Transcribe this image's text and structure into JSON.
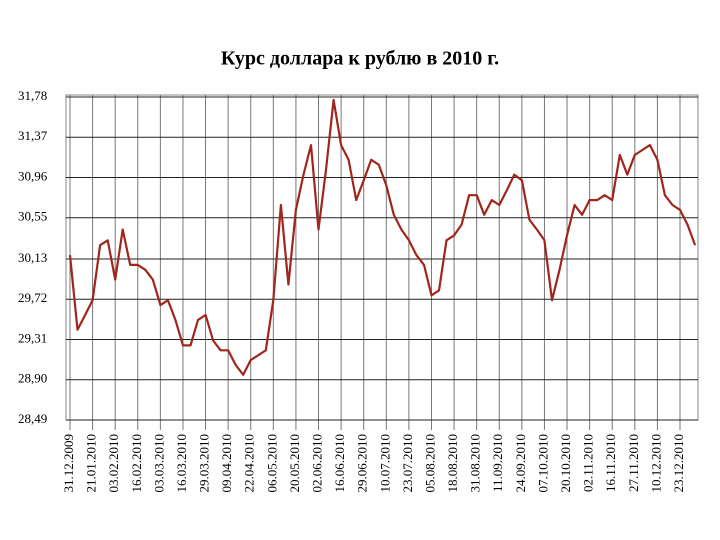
{
  "chart_data": {
    "type": "line",
    "title": "Курс доллара к рублю в 2010 г.",
    "categories": [
      "31.12.2009",
      null,
      null,
      "21.01.2010",
      null,
      null,
      "03.02.2010",
      null,
      null,
      "16.02.2010",
      null,
      null,
      "03.03.2010",
      null,
      null,
      "16.03.2010",
      null,
      null,
      "29.03.2010",
      null,
      null,
      "09.04.2010",
      null,
      null,
      "22.04.2010",
      null,
      null,
      "06.05.2010",
      null,
      null,
      "20.05.2010",
      null,
      null,
      "02.06.2010",
      null,
      null,
      "16.06.2010",
      null,
      null,
      "29.06.2010",
      null,
      null,
      "10.07.2010",
      null,
      null,
      "23.07.2010",
      null,
      null,
      "05.08.2010",
      null,
      null,
      "18.08.2010",
      null,
      null,
      "31.08.2010",
      null,
      null,
      "11.09.2010",
      null,
      null,
      "24.09.2010",
      null,
      null,
      "07.10.2010",
      null,
      null,
      "20.10.2010",
      null,
      null,
      "02.11.2010",
      null,
      null,
      "16.11.2010",
      null,
      null,
      "27.11.2010",
      null,
      null,
      "10.12.2010",
      null,
      null,
      "23.12.2010",
      null,
      null
    ],
    "values": [
      30.17,
      29.41,
      29.56,
      29.71,
      30.27,
      30.32,
      29.92,
      30.43,
      30.07,
      30.07,
      30.02,
      29.92,
      29.66,
      29.71,
      29.51,
      29.25,
      29.25,
      29.51,
      29.56,
      29.3,
      29.2,
      29.2,
      29.05,
      28.95,
      29.1,
      29.15,
      29.2,
      29.71,
      30.68,
      29.87,
      30.63,
      30.99,
      31.29,
      30.43,
      31.04,
      31.75,
      31.29,
      31.14,
      30.73,
      30.93,
      31.14,
      31.09,
      30.88,
      30.58,
      30.43,
      30.32,
      30.17,
      30.07,
      29.76,
      29.81,
      30.32,
      30.37,
      30.48,
      30.78,
      30.78,
      30.58,
      30.73,
      30.68,
      30.83,
      30.99,
      30.93,
      30.53,
      30.43,
      30.32,
      29.71,
      30.02,
      30.37,
      30.68,
      30.58,
      30.73,
      30.73,
      30.78,
      30.73,
      31.19,
      30.99,
      31.19,
      31.24,
      31.29,
      31.14,
      30.78,
      30.68,
      30.63,
      30.48,
      30.27
    ],
    "color": "#a0261c",
    "ylim": [
      28.49,
      31.78
    ],
    "yticks": [
      {
        "value": 28.49,
        "label": "28,49"
      },
      {
        "value": 28.9,
        "label": "28,90"
      },
      {
        "value": 29.31,
        "label": "29,31"
      },
      {
        "value": 29.72,
        "label": "29,72"
      },
      {
        "value": 30.13,
        "label": "30,13"
      },
      {
        "value": 30.55,
        "label": "30,55"
      },
      {
        "value": 30.96,
        "label": "30,96"
      },
      {
        "value": 31.37,
        "label": "31,37"
      },
      {
        "value": 31.78,
        "label": "31,78"
      }
    ],
    "grid": true
  }
}
